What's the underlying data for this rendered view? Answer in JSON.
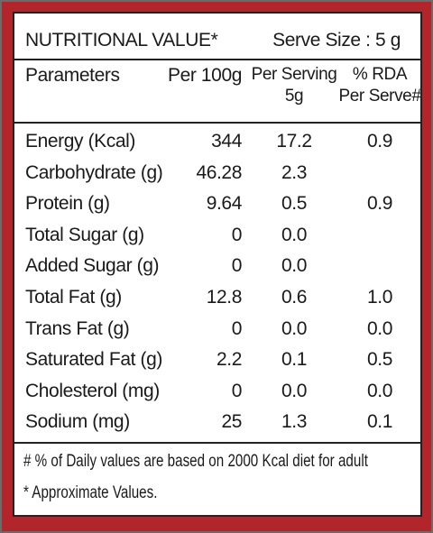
{
  "header": {
    "title": "NUTRITIONAL VALUE*",
    "serve_size": "Serve Size : 5 g"
  },
  "table": {
    "columns": [
      "Parameters",
      "Per 100g",
      "Per Serving\n5g",
      "% RDA\nPer Serve#"
    ],
    "rows": [
      [
        "Energy (Kcal)",
        "344",
        "17.2",
        "0.9"
      ],
      [
        "Carbohydrate (g)",
        "46.28",
        "2.3",
        null
      ],
      [
        "Protein (g)",
        "9.64",
        "0.5",
        "0.9"
      ],
      [
        "Total Sugar (g)",
        "0",
        "0.0",
        null
      ],
      [
        "Added Sugar (g)",
        "0",
        "0.0",
        null
      ],
      [
        "Total Fat (g)",
        "12.8",
        "0.6",
        "1.0"
      ],
      [
        "Trans Fat (g)",
        "0",
        "0.0",
        "0.0"
      ],
      [
        "Saturated Fat (g)",
        "2.2",
        "0.1",
        "0.5"
      ],
      [
        "Cholesterol (mg)",
        "0",
        "0.0",
        "0.0"
      ],
      [
        "Sodium (mg)",
        "25",
        "1.3",
        "0.1"
      ]
    ]
  },
  "footnotes": [
    "# % of Daily values are based on 2000 Kcal diet for adult",
    "* Approximate Values."
  ]
}
